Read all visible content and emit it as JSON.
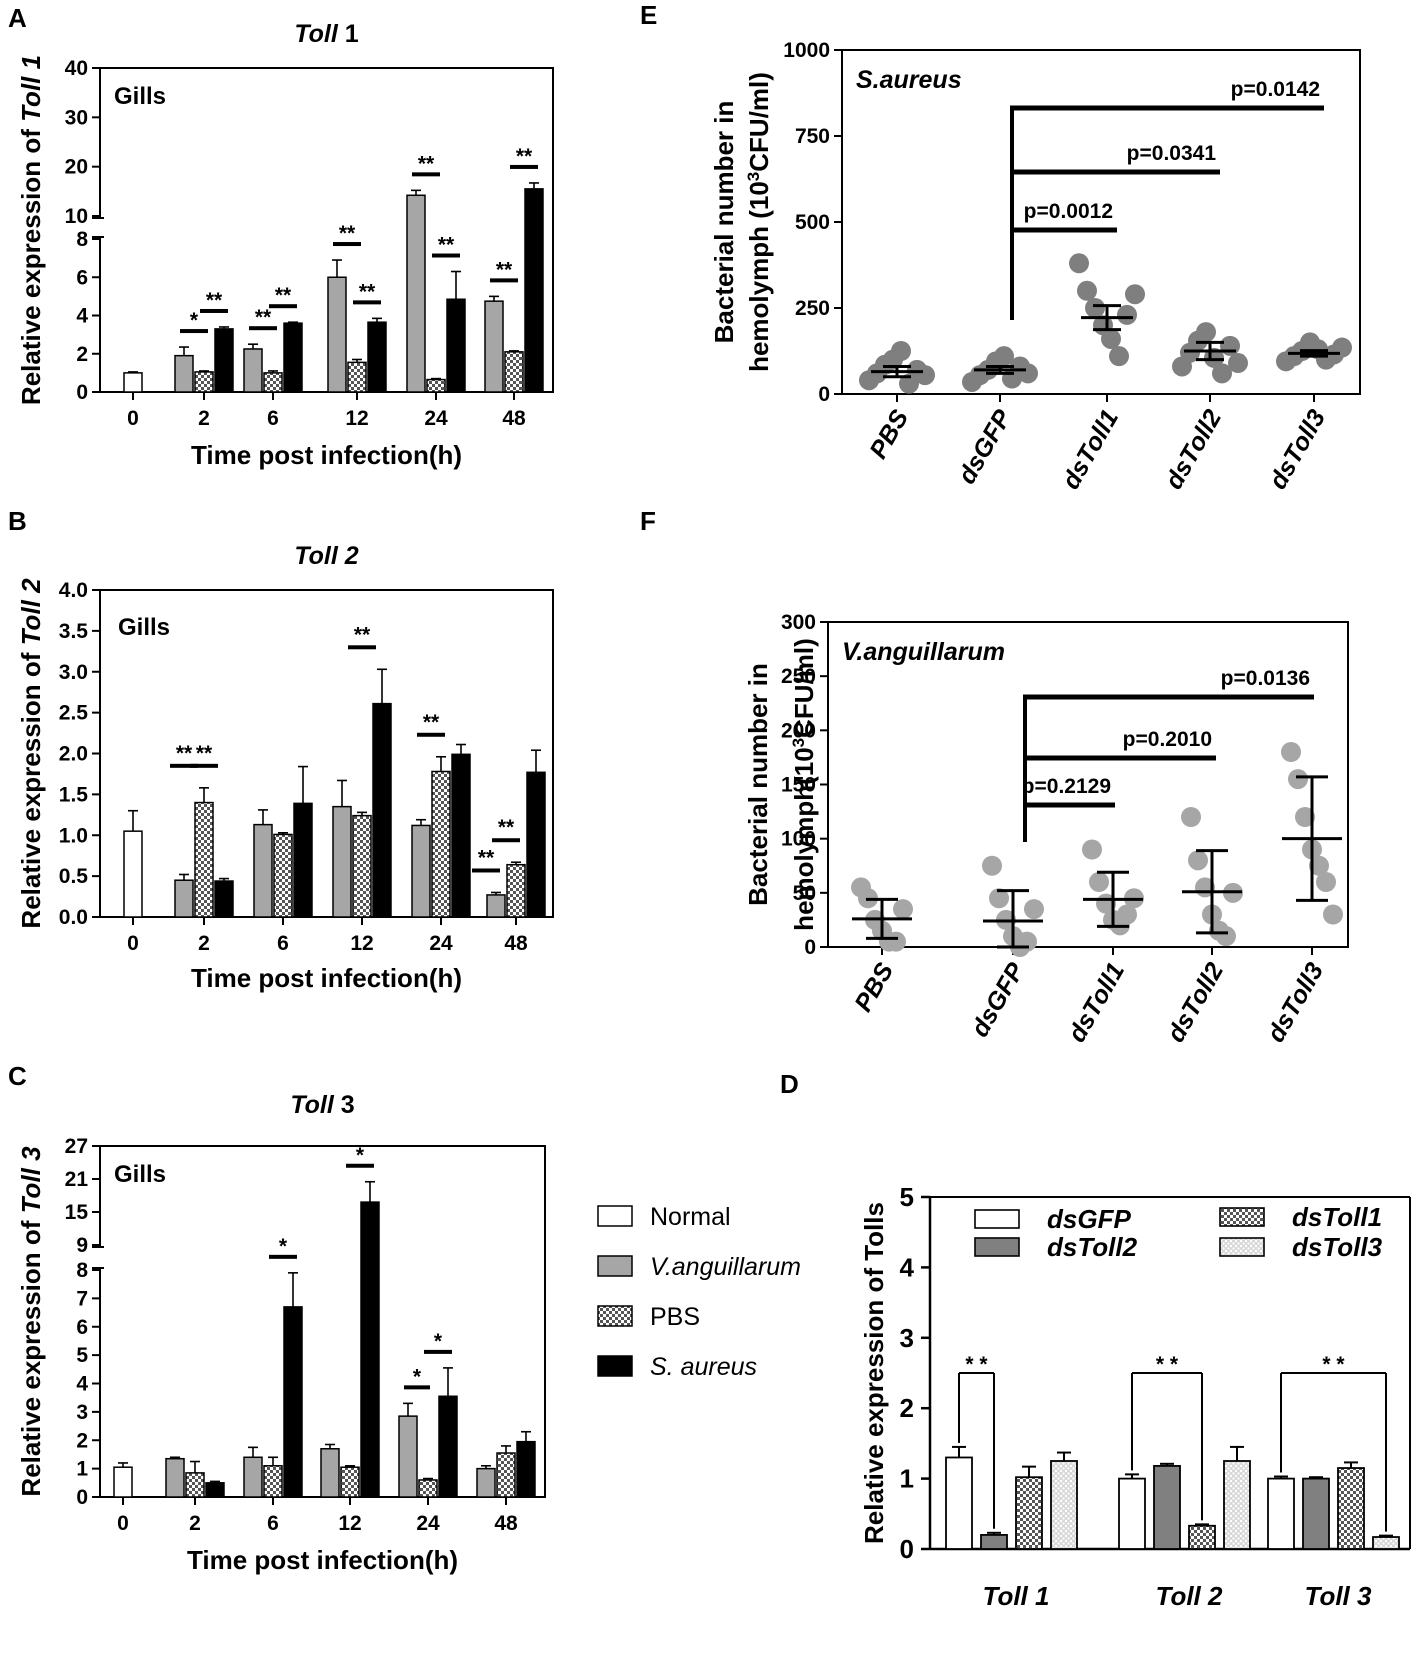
{
  "legend": [
    {
      "label": "Normal",
      "pattern": "white"
    },
    {
      "label": "V.anguillarum",
      "pattern": "gray"
    },
    {
      "label": "PBS",
      "pattern": "check"
    },
    {
      "label": "S. aureus",
      "pattern": "black"
    }
  ],
  "chart_data": [
    {
      "panel": "A",
      "type": "bar",
      "title_italic": "Toll",
      "title_rest": " 1",
      "ylabel_pre": "Relative expression of ",
      "ylabel_gene": "Toll 1",
      "xlabel": "Time post infection(h)",
      "tissue": "Gills",
      "categories": [
        "0",
        "2",
        "6",
        "12",
        "24",
        "48"
      ],
      "series": [
        {
          "name": "Normal",
          "values": [
            1.0,
            null,
            null,
            null,
            null,
            null
          ],
          "errors": [
            0.05,
            null,
            null,
            null,
            null,
            null
          ]
        },
        {
          "name": "V.anguillarum",
          "values": [
            null,
            1.9,
            2.25,
            6.0,
            14.2,
            4.75
          ],
          "errors": [
            null,
            0.45,
            0.25,
            0.9,
            1.0,
            0.25
          ]
        },
        {
          "name": "PBS",
          "values": [
            null,
            1.05,
            1.0,
            1.55,
            0.65,
            2.1
          ],
          "errors": [
            null,
            0.05,
            0.1,
            0.15,
            0.05,
            0.05
          ]
        },
        {
          "name": "S. aureus",
          "values": [
            null,
            3.3,
            3.6,
            3.65,
            4.85,
            15.5
          ],
          "errors": [
            null,
            0.1,
            0.05,
            0.2,
            1.45,
            1.2
          ]
        }
      ],
      "y_lower_ticks": [
        "0",
        "2",
        "4",
        "6",
        "8"
      ],
      "y_upper_ticks": [
        "10",
        "20",
        "30",
        "40"
      ],
      "y_break": [
        8,
        10
      ],
      "ylim": [
        0,
        40
      ],
      "significance": [
        {
          "group": 1,
          "from": 1,
          "to": 2,
          "label": "*"
        },
        {
          "group": 1,
          "from": 2,
          "to": 3,
          "label": "**"
        },
        {
          "group": 2,
          "from": 1,
          "to": 2,
          "label": "**"
        },
        {
          "group": 2,
          "from": 2,
          "to": 3,
          "label": "**"
        },
        {
          "group": 3,
          "from": 1,
          "to": 2,
          "label": "**"
        },
        {
          "group": 3,
          "from": 2,
          "to": 3,
          "label": "**"
        },
        {
          "group": 4,
          "from": 1,
          "to": 2,
          "label": "**"
        },
        {
          "group": 4,
          "from": 2,
          "to": 3,
          "label": "**"
        },
        {
          "group": 5,
          "from": 1,
          "to": 2,
          "label": "**"
        },
        {
          "group": 5,
          "from": 2,
          "to": 3,
          "label": "**"
        }
      ]
    },
    {
      "panel": "B",
      "type": "bar",
      "title_italic": "Toll 2",
      "title_rest": "",
      "ylabel_pre": "Relative expression of ",
      "ylabel_gene": "Toll 2",
      "xlabel": "Time post infection(h)",
      "tissue": "Gills",
      "categories": [
        "0",
        "2",
        "6",
        "12",
        "24",
        "48"
      ],
      "series": [
        {
          "name": "Normal",
          "values": [
            1.05,
            null,
            null,
            null,
            null,
            null
          ],
          "errors": [
            0.25,
            null,
            null,
            null,
            null,
            null
          ]
        },
        {
          "name": "V.anguillarum",
          "values": [
            null,
            0.45,
            1.13,
            1.35,
            1.12,
            0.27
          ],
          "errors": [
            null,
            0.07,
            0.18,
            0.32,
            0.07,
            0.03
          ]
        },
        {
          "name": "PBS",
          "values": [
            null,
            1.4,
            1.01,
            1.24,
            1.78,
            0.64
          ],
          "errors": [
            null,
            0.18,
            0.02,
            0.04,
            0.18,
            0.03
          ]
        },
        {
          "name": "S. aureus",
          "values": [
            null,
            0.44,
            1.39,
            2.61,
            1.99,
            1.77
          ],
          "errors": [
            null,
            0.03,
            0.45,
            0.42,
            0.12,
            0.27
          ]
        }
      ],
      "y_ticks": [
        "0.0",
        "0.5",
        "1.0",
        "1.5",
        "2.0",
        "2.5",
        "3.0",
        "3.5",
        "4.0"
      ],
      "ylim": [
        0,
        4
      ],
      "significance": [
        {
          "group": 1,
          "from": 0.5,
          "to": 1.5,
          "label": "**"
        },
        {
          "group": 1,
          "from": 1.5,
          "to": 2.5,
          "label": "**"
        },
        {
          "group": 3,
          "from": 1.5,
          "to": 2.5,
          "label": "**"
        },
        {
          "group": 4,
          "from": 1,
          "to": 2,
          "label": "**"
        },
        {
          "group": 5,
          "from": 1,
          "to": 2,
          "label": "**"
        },
        {
          "group": 5,
          "from": 0,
          "to": 1,
          "label": "**"
        }
      ]
    },
    {
      "panel": "C",
      "type": "bar",
      "title_italic": "Toll",
      "title_rest": " 3",
      "ylabel_pre": "Relative expression of ",
      "ylabel_gene": "Toll 3",
      "xlabel": "Time post infection(h)",
      "tissue": "Gills",
      "categories": [
        "0",
        "2",
        "6",
        "12",
        "24",
        "48"
      ],
      "series": [
        {
          "name": "Normal",
          "values": [
            1.05,
            null,
            null,
            null,
            null,
            null
          ],
          "errors": [
            0.15,
            null,
            null,
            null,
            null,
            null
          ]
        },
        {
          "name": "V.anguillarum",
          "values": [
            null,
            1.35,
            1.4,
            1.7,
            2.85,
            1.0
          ],
          "errors": [
            null,
            0.05,
            0.35,
            0.15,
            0.45,
            0.1
          ]
        },
        {
          "name": "PBS",
          "values": [
            null,
            0.85,
            1.1,
            1.05,
            0.6,
            1.55
          ],
          "errors": [
            null,
            0.4,
            0.3,
            0.05,
            0.05,
            0.25
          ]
        },
        {
          "name": "S. aureus",
          "values": [
            null,
            0.5,
            6.7,
            16.8,
            3.55,
            1.95
          ],
          "errors": [
            null,
            0.05,
            1.2,
            3.7,
            1.0,
            0.35
          ]
        }
      ],
      "y_lower_ticks": [
        "0",
        "1",
        "2",
        "3",
        "4",
        "5",
        "6",
        "7",
        "8"
      ],
      "y_upper_ticks": [
        "9",
        "15",
        "21",
        "27"
      ],
      "y_break": [
        8,
        9
      ],
      "ylim": [
        0,
        27
      ],
      "significance": [
        {
          "group": 2,
          "from": 2,
          "to": 3,
          "label": "*"
        },
        {
          "group": 3,
          "from": 2,
          "to": 3,
          "label": "*"
        },
        {
          "group": 4,
          "from": 1,
          "to": 1.9,
          "label": "*"
        },
        {
          "group": 4,
          "from": 2,
          "to": 3,
          "label": "*"
        }
      ]
    },
    {
      "panel": "D",
      "type": "bar",
      "ylabel": "Relative expression of Tolls",
      "categories": [
        "Toll 1",
        "Toll 2",
        "Toll 3"
      ],
      "series": [
        {
          "name": "dsGFP",
          "values": [
            1.3,
            1.0,
            1.0
          ],
          "errors": [
            0.15,
            0.06,
            0.03
          ]
        },
        {
          "name": "dsToll2",
          "values": [
            0.2,
            1.18,
            1.0
          ],
          "errors": [
            0.03,
            0.03,
            0.02
          ]
        },
        {
          "name": "dsToll1",
          "values": [
            1.02,
            0.33,
            1.15
          ],
          "errors": [
            0.15,
            0.02,
            0.08
          ]
        },
        {
          "name": "dsToll3",
          "values": [
            1.25,
            1.25,
            0.17
          ],
          "errors": [
            0.12,
            0.2,
            0.02
          ]
        }
      ],
      "bar_order": [
        "dsGFP",
        "dsToll2",
        "dsToll1",
        "dsToll3"
      ],
      "y_ticks": [
        "0",
        "1",
        "2",
        "3",
        "4",
        "5"
      ],
      "ylim": [
        0,
        5
      ],
      "significance": [
        {
          "group": 0,
          "from": 0,
          "to": 1,
          "label": "* *"
        },
        {
          "group": 1,
          "from": 0,
          "to": 2,
          "label": "* *"
        },
        {
          "group": 2,
          "from": 0,
          "to": 3,
          "label": "* *"
        }
      ]
    },
    {
      "panel": "E",
      "type": "scatter",
      "tissue": "S.aureus",
      "ylabel_line1": "Bacterial number in",
      "ylabel_line2": "hemolymph (10",
      "ylabel_sup": "3",
      "ylabel_line2_end": "CFU/ml)",
      "categories": [
        "PBS",
        "dsGFP",
        "dsToll1",
        "dsToll2",
        "dsToll3"
      ],
      "points": [
        [
          40,
          60,
          85,
          100,
          125,
          30,
          70,
          55
        ],
        [
          35,
          55,
          70,
          95,
          110,
          45,
          80,
          60
        ],
        [
          380,
          300,
          250,
          200,
          160,
          110,
          230,
          290
        ],
        [
          80,
          120,
          155,
          180,
          105,
          60,
          140,
          90
        ],
        [
          95,
          110,
          125,
          150,
          130,
          100,
          115,
          135
        ]
      ],
      "means": [
        65,
        70,
        222,
        125,
        118
      ],
      "errors": [
        15,
        10,
        35,
        25,
        8
      ],
      "y_ticks": [
        "0",
        "250",
        "500",
        "750",
        "1000"
      ],
      "ylim": [
        0,
        1000
      ],
      "comparisons": [
        {
          "from": 1,
          "to": 2,
          "label": "p=0.0012"
        },
        {
          "from": 1,
          "to": 3,
          "label": "p=0.0341"
        },
        {
          "from": 1,
          "to": 4,
          "label": "p=0.0142"
        }
      ]
    },
    {
      "panel": "F",
      "type": "scatter",
      "tissue": "V.anguillarum",
      "ylabel_line1": "Bacterial number in",
      "ylabel_line2": "hemolymph(10",
      "ylabel_sup": "3",
      "ylabel_line2_end": "CFU/ml)",
      "categories": [
        "PBS",
        "dsGFP",
        "dsToll1",
        "dsToll2",
        "dsToll3"
      ],
      "points": [
        [
          55,
          45,
          25,
          15,
          5,
          5,
          35
        ],
        [
          75,
          45,
          25,
          10,
          0,
          5,
          35
        ],
        [
          90,
          60,
          40,
          25,
          20,
          30,
          45
        ],
        [
          120,
          80,
          55,
          30,
          15,
          10,
          50
        ],
        [
          180,
          155,
          120,
          90,
          75,
          60,
          30
        ]
      ],
      "means": [
        26,
        24,
        44,
        51,
        100
      ],
      "errors": [
        18,
        28,
        25,
        38,
        57
      ],
      "y_ticks": [
        "0",
        "50",
        "100",
        "150",
        "200",
        "250",
        "300"
      ],
      "ylim": [
        0,
        300
      ],
      "comparisons": [
        {
          "from": 1,
          "to": 2,
          "label": "p=0.2129"
        },
        {
          "from": 1,
          "to": 3,
          "label": "p=0.2010"
        },
        {
          "from": 1,
          "to": 4,
          "label": "p=0.0136"
        }
      ]
    }
  ]
}
